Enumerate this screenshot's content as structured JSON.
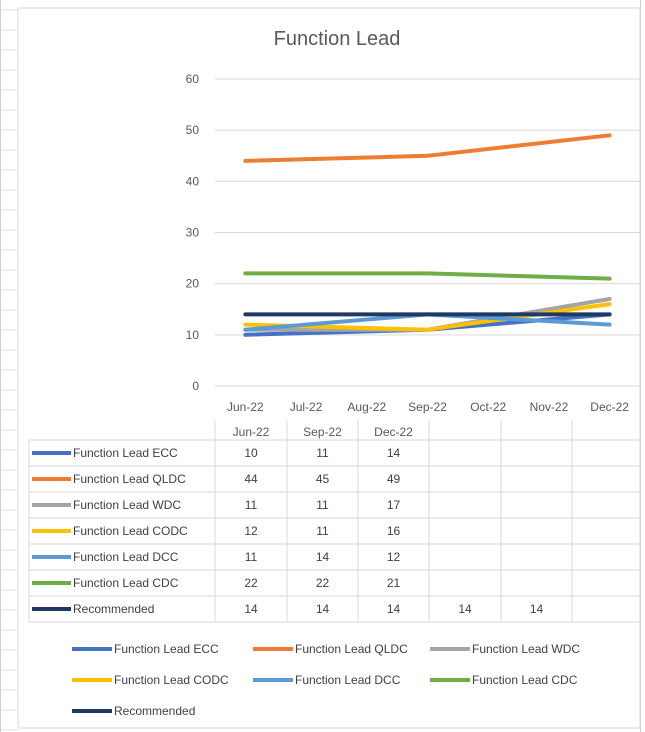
{
  "chart_data": {
    "type": "line",
    "title": "Function Lead",
    "x": [
      "Jun-22",
      "Jul-22",
      "Aug-22",
      "Sep-22",
      "Oct-22",
      "Nov-22",
      "Dec-22"
    ],
    "ylim": [
      0,
      60
    ],
    "yticks": [
      0,
      10,
      20,
      30,
      40,
      50,
      60
    ],
    "grid": true,
    "legend_position": "bottom",
    "table_columns": [
      "Jun-22",
      "Sep-22",
      "Dec-22",
      "",
      ""
    ],
    "series": [
      {
        "name": "Function Lead ECC",
        "color": "#4472c4",
        "values": [
          10,
          null,
          null,
          11,
          null,
          null,
          14
        ],
        "table": [
          10,
          11,
          14,
          null,
          null
        ]
      },
      {
        "name": "Function Lead QLDC",
        "color": "#ed7d31",
        "values": [
          44,
          null,
          null,
          45,
          null,
          null,
          49
        ],
        "table": [
          44,
          45,
          49,
          null,
          null
        ]
      },
      {
        "name": "Function Lead WDC",
        "color": "#a5a5a5",
        "values": [
          11,
          null,
          null,
          11,
          null,
          null,
          17
        ],
        "table": [
          11,
          11,
          17,
          null,
          null
        ]
      },
      {
        "name": "Function Lead CODC",
        "color": "#ffc000",
        "values": [
          12,
          null,
          null,
          11,
          null,
          null,
          16
        ],
        "table": [
          12,
          11,
          16,
          null,
          null
        ]
      },
      {
        "name": "Function Lead DCC",
        "color": "#5b9bd5",
        "values": [
          11,
          null,
          null,
          14,
          null,
          null,
          12
        ],
        "table": [
          11,
          14,
          12,
          null,
          null
        ]
      },
      {
        "name": "Function Lead CDC",
        "color": "#70ad47",
        "values": [
          22,
          null,
          null,
          22,
          null,
          null,
          21
        ],
        "table": [
          22,
          22,
          21,
          null,
          null
        ]
      },
      {
        "name": "Recommended",
        "color": "#1f3864",
        "values": [
          14,
          null,
          null,
          14,
          null,
          null,
          14
        ],
        "table": [
          14,
          14,
          14,
          14,
          14
        ]
      }
    ]
  }
}
